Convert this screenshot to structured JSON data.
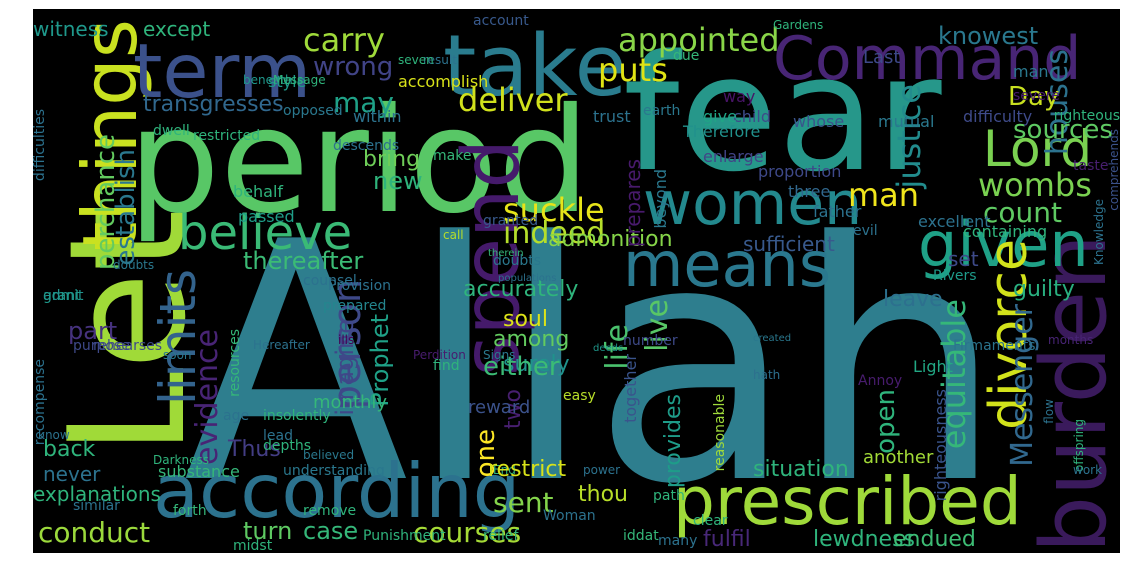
{
  "words": [
    {
      "text": "Allah",
      "color": "#2e7e8e",
      "rotated": false
    },
    {
      "text": "fear",
      "color": "#26978a",
      "rotated": false
    },
    {
      "text": "period",
      "color": "#58c766",
      "rotated": false
    },
    {
      "text": "Let",
      "color": "#a0da38",
      "rotated": true
    },
    {
      "text": "things",
      "color": "#c9e120",
      "rotated": true
    },
    {
      "text": "take",
      "color": "#2a7c8e",
      "rotated": false
    },
    {
      "text": "term",
      "color": "#3b518b",
      "rotated": false
    },
    {
      "text": "Command",
      "color": "#482575",
      "rotated": false
    },
    {
      "text": "according",
      "color": "#2c728e",
      "rotated": false
    },
    {
      "text": "prescribed",
      "color": "#9fda3a",
      "rotated": false
    },
    {
      "text": "spend",
      "color": "#451a6b",
      "rotated": true
    },
    {
      "text": "burden",
      "color": "#3a1a5c",
      "rotated": true
    },
    {
      "text": "believe",
      "color": "#3aba76",
      "rotated": false
    },
    {
      "text": "means",
      "color": "#2a788e",
      "rotated": false
    },
    {
      "text": "given",
      "color": "#1fa187",
      "rotated": false
    },
    {
      "text": "women",
      "color": "#23898e",
      "rotated": false
    },
    {
      "text": "limits",
      "color": "#33638d",
      "rotated": true
    },
    {
      "text": "divorce",
      "color": "#d2e21b",
      "rotated": true
    },
    {
      "text": "Lord",
      "color": "#7ad151",
      "rotated": false
    },
    {
      "text": "appointed",
      "color": "#89d548",
      "rotated": false
    },
    {
      "text": "carry",
      "color": "#9fda3a",
      "rotated": false
    },
    {
      "text": "puts",
      "color": "#e0e314",
      "rotated": false
    },
    {
      "text": "deliver",
      "color": "#d0e11c",
      "rotated": false
    },
    {
      "text": "suckle",
      "color": "#e7e419",
      "rotated": false
    },
    {
      "text": "wombs",
      "color": "#7ad151",
      "rotated": false
    },
    {
      "text": "man",
      "color": "#f0e51c",
      "rotated": false
    },
    {
      "text": "Messenger",
      "color": "#31688e",
      "rotated": true
    },
    {
      "text": "equitable",
      "color": "#35b779",
      "rotated": true
    },
    {
      "text": "justice",
      "color": "#228c8d",
      "rotated": true
    },
    {
      "text": "count",
      "color": "#5ec962",
      "rotated": false
    },
    {
      "text": "houses",
      "color": "#2c728e",
      "rotated": true
    },
    {
      "text": "sources",
      "color": "#5ec962",
      "rotated": false
    },
    {
      "text": "knowest",
      "color": "#2a788e",
      "rotated": false
    },
    {
      "text": "Last",
      "color": "#3e4989",
      "rotated": false
    },
    {
      "text": "Day",
      "color": "#c8e020",
      "rotated": false
    },
    {
      "text": "witness",
      "color": "#1f988b",
      "rotated": false
    },
    {
      "text": "except",
      "color": "#2fb47c",
      "rotated": false
    },
    {
      "text": "wrong",
      "color": "#414487",
      "rotated": false
    },
    {
      "text": "may",
      "color": "#1fa187",
      "rotated": false
    },
    {
      "text": "transgresses",
      "color": "#31688e",
      "rotated": false
    },
    {
      "text": "establish",
      "color": "#2a788e",
      "rotated": true
    },
    {
      "text": "perchance",
      "color": "#63cb5f",
      "rotated": true
    },
    {
      "text": "new",
      "color": "#2fb47c",
      "rotated": false
    },
    {
      "text": "bring",
      "color": "#6ece58",
      "rotated": false
    },
    {
      "text": "indeed",
      "color": "#b5de2b",
      "rotated": false
    },
    {
      "text": "admonition",
      "color": "#86d549",
      "rotated": false
    },
    {
      "text": "sufficient",
      "color": "#38598c",
      "rotated": false
    },
    {
      "text": "set",
      "color": "#3e4a89",
      "rotated": false
    },
    {
      "text": "thereafter",
      "color": "#3bbb75",
      "rotated": false
    },
    {
      "text": "guilty",
      "color": "#29af7f",
      "rotated": false
    },
    {
      "text": "person",
      "color": "#3e4989",
      "rotated": true
    },
    {
      "text": "accurately",
      "color": "#2fb47c",
      "rotated": false
    },
    {
      "text": "soul",
      "color": "#dde318",
      "rotated": false
    },
    {
      "text": "among",
      "color": "#63cb5f",
      "rotated": false
    },
    {
      "text": "leave",
      "color": "#2d708e",
      "rotated": false
    },
    {
      "text": "evidence",
      "color": "#482475",
      "rotated": true
    },
    {
      "text": "part",
      "color": "#46327e",
      "rotated": false
    },
    {
      "text": "Prophet",
      "color": "#1fa187",
      "rotated": true
    },
    {
      "text": "imagine",
      "color": "#3f4788",
      "rotated": true
    },
    {
      "text": "surely",
      "color": "#20928c",
      "rotated": false
    },
    {
      "text": "two",
      "color": "#481f70",
      "rotated": true
    },
    {
      "text": "live",
      "color": "#58c766",
      "rotated": true
    },
    {
      "text": "life",
      "color": "#4ac16d",
      "rotated": true
    },
    {
      "text": "either",
      "color": "#3bbb75",
      "rotated": false
    },
    {
      "text": "open",
      "color": "#2fb47c",
      "rotated": true
    },
    {
      "text": "one",
      "color": "#fde725",
      "rotated": true
    },
    {
      "text": "provides",
      "color": "#1e9c89",
      "rotated": true
    },
    {
      "text": "back",
      "color": "#2fb47c",
      "rotated": false
    },
    {
      "text": "Thus",
      "color": "#433d84",
      "rotated": false
    },
    {
      "text": "never",
      "color": "#2c728e",
      "rotated": false
    },
    {
      "text": "monthly",
      "color": "#35b779",
      "rotated": false
    },
    {
      "text": "reward",
      "color": "#3b528b",
      "rotated": false
    },
    {
      "text": "situation",
      "color": "#2fb47c",
      "rotated": false
    },
    {
      "text": "thou",
      "color": "#b8de29",
      "rotated": false
    },
    {
      "text": "conduct",
      "color": "#9bd93c",
      "rotated": false
    },
    {
      "text": "turn",
      "color": "#5ec962",
      "rotated": false
    },
    {
      "text": "case",
      "color": "#35b779",
      "rotated": false
    },
    {
      "text": "courses",
      "color": "#a5db36",
      "rotated": false
    },
    {
      "text": "sent",
      "color": "#84d44b",
      "rotated": false
    },
    {
      "text": "fulfil",
      "color": "#482878",
      "rotated": false
    },
    {
      "text": "lewdness",
      "color": "#2fb47c",
      "rotated": false
    },
    {
      "text": "endued",
      "color": "#3dbc74",
      "rotated": false
    },
    {
      "text": "another",
      "color": "#a2da37",
      "rotated": false
    },
    {
      "text": "way",
      "color": "#481467",
      "rotated": false
    },
    {
      "text": "child",
      "color": "#3e4c8a",
      "rotated": false
    },
    {
      "text": "whose",
      "color": "#3a548c",
      "rotated": false
    },
    {
      "text": "mutual",
      "color": "#2a788e",
      "rotated": false
    },
    {
      "text": "difficulty",
      "color": "#3e4a89",
      "rotated": false
    },
    {
      "text": "trust",
      "color": "#2c728e",
      "rotated": false
    },
    {
      "text": "style",
      "color": "#1f998a",
      "rotated": false
    },
    {
      "text": "accomplish",
      "color": "#d8e219",
      "rotated": false
    },
    {
      "text": "within",
      "color": "#2c738e",
      "rotated": false
    },
    {
      "text": "prepares",
      "color": "#481a6c",
      "rotated": true
    },
    {
      "text": "beyond",
      "color": "#2a788e",
      "rotated": true
    },
    {
      "text": "give",
      "color": "#20a486",
      "rotated": false
    },
    {
      "text": "enlarge",
      "color": "#414487",
      "rotated": false
    },
    {
      "text": "three",
      "color": "#31688e",
      "rotated": false
    },
    {
      "text": "proportion",
      "color": "#3e4989",
      "rotated": false
    },
    {
      "text": "father",
      "color": "#2c728e",
      "rotated": false
    },
    {
      "text": "behalf",
      "color": "#2fb47c",
      "rotated": false
    },
    {
      "text": "passed",
      "color": "#1f9e89",
      "rotated": false
    },
    {
      "text": "granted",
      "color": "#38598c",
      "rotated": false
    },
    {
      "text": "call",
      "color": "#b5de2b",
      "rotated": false
    },
    {
      "text": "doubts",
      "color": "#2a788e",
      "rotated": false
    },
    {
      "text": "counsel",
      "color": "#2c728e",
      "rotated": false
    },
    {
      "text": "prepared",
      "color": "#24868e",
      "rotated": false
    },
    {
      "text": "ills",
      "color": "#440154",
      "rotated": false
    },
    {
      "text": "Rivers",
      "color": "#1e9b8a",
      "rotated": false
    },
    {
      "text": "months",
      "color": "#482475",
      "rotated": false
    },
    {
      "text": "Firmaments",
      "color": "#2b748e",
      "rotated": false
    },
    {
      "text": "admit",
      "color": "#20928c",
      "rotated": false
    },
    {
      "text": "therein",
      "color": "#35b779",
      "rotated": false
    },
    {
      "text": "populations",
      "color": "#2c728e",
      "rotated": false
    },
    {
      "text": "number",
      "color": "#3e4a89",
      "rotated": false
    },
    {
      "text": "created",
      "color": "#2a788e",
      "rotated": false
    },
    {
      "text": "deeds",
      "color": "#1f988b",
      "rotated": false
    },
    {
      "text": "easy",
      "color": "#b8de29",
      "rotated": false
    },
    {
      "text": "together",
      "color": "#3a548c",
      "rotated": true
    },
    {
      "text": "hath",
      "color": "#2d708e",
      "rotated": false
    },
    {
      "text": "Annoy",
      "color": "#481c6e",
      "rotated": false
    },
    {
      "text": "Light",
      "color": "#22a884",
      "rotated": false
    },
    {
      "text": "reasonable",
      "color": "#9fda3a",
      "rotated": true
    },
    {
      "text": "righteousness",
      "color": "#3a548c",
      "rotated": true
    },
    {
      "text": "find",
      "color": "#2fb47c",
      "rotated": false
    },
    {
      "text": "grant",
      "color": "#1f988b",
      "rotated": false
    },
    {
      "text": "doubts",
      "color": "#2a788e",
      "rotated": false
    },
    {
      "text": "Provision",
      "color": "#2c728e",
      "rotated": false
    },
    {
      "text": "rehearses",
      "color": "#3e4989",
      "rotated": false
    },
    {
      "text": "Hereafter",
      "color": "#2c728e",
      "rotated": false
    },
    {
      "text": "Perdition",
      "color": "#481c6e",
      "rotated": false
    },
    {
      "text": "Signs",
      "color": "#2a788e",
      "rotated": false
    },
    {
      "text": "Therefore",
      "color": "#21918c",
      "rotated": false
    },
    {
      "text": "righteous",
      "color": "#2fb47c",
      "rotated": false
    },
    {
      "text": "comprehends",
      "color": "#3b528b",
      "rotated": true
    },
    {
      "text": "Knowledge",
      "color": "#2c728e",
      "rotated": true
    },
    {
      "text": "taste",
      "color": "#481f70",
      "rotated": false
    },
    {
      "text": "excellent",
      "color": "#2c728e",
      "rotated": false
    },
    {
      "text": "containing",
      "color": "#2fb47c",
      "rotated": false
    },
    {
      "text": "evil",
      "color": "#2c728e",
      "rotated": false
    },
    {
      "text": "man",
      "color": "#2a788e",
      "rotated": false
    },
    {
      "text": "severe",
      "color": "#481c6e",
      "rotated": false
    },
    {
      "text": "due",
      "color": "#35b779",
      "rotated": false
    },
    {
      "text": "earth",
      "color": "#2a788e",
      "rotated": false
    },
    {
      "text": "Gardens",
      "color": "#2fb47c",
      "rotated": false
    },
    {
      "text": "account",
      "color": "#38598c",
      "rotated": false
    },
    {
      "text": "result",
      "color": "#2c728e",
      "rotated": false
    },
    {
      "text": "seven",
      "color": "#2fb47c",
      "rotated": false
    },
    {
      "text": "beneath",
      "color": "#1f988b",
      "rotated": false
    },
    {
      "text": "Message",
      "color": "#2fb47c",
      "rotated": false
    },
    {
      "text": "opposed",
      "color": "#2a788e",
      "rotated": false
    },
    {
      "text": "dwell",
      "color": "#2fb47c",
      "rotated": false
    },
    {
      "text": "difficulties",
      "color": "#2c728e",
      "rotated": true
    },
    {
      "text": "descends",
      "color": "#2c728e",
      "rotated": false
    },
    {
      "text": "make",
      "color": "#35b779",
      "rotated": false
    },
    {
      "text": "restricted",
      "color": "#2fb47c",
      "rotated": false
    },
    {
      "text": "soon",
      "color": "#2a788e",
      "rotated": false
    },
    {
      "text": "purpose",
      "color": "#3e4989",
      "rotated": false
    },
    {
      "text": "resources",
      "color": "#35b779",
      "rotated": true
    },
    {
      "text": "recompense",
      "color": "#2c728e",
      "rotated": true
    },
    {
      "text": "age",
      "color": "#2c728e",
      "rotated": false
    },
    {
      "text": "insolently",
      "color": "#2fb47c",
      "rotated": false
    },
    {
      "text": "lead",
      "color": "#2c728e",
      "rotated": false
    },
    {
      "text": "depths",
      "color": "#2fb47c",
      "rotated": false
    },
    {
      "text": "believed",
      "color": "#2a788e",
      "rotated": false
    },
    {
      "text": "know",
      "color": "#2c728e",
      "rotated": false
    },
    {
      "text": "Darkness",
      "color": "#2fb47c",
      "rotated": false
    },
    {
      "text": "substance",
      "color": "#35b779",
      "rotated": false
    },
    {
      "text": "understanding",
      "color": "#2a788e",
      "rotated": false
    },
    {
      "text": "End",
      "color": "#2fb47c",
      "rotated": false
    },
    {
      "text": "power",
      "color": "#2c728e",
      "rotated": false
    },
    {
      "text": "restrict",
      "color": "#d8e219",
      "rotated": false
    },
    {
      "text": "path",
      "color": "#2fb47c",
      "rotated": false
    },
    {
      "text": "flow",
      "color": "#2c728e",
      "rotated": true
    },
    {
      "text": "offspring",
      "color": "#2fb47c",
      "rotated": true
    },
    {
      "text": "work",
      "color": "#2c728e",
      "rotated": false
    },
    {
      "text": "explanations",
      "color": "#2fb47c",
      "rotated": false
    },
    {
      "text": "similar",
      "color": "#2c728e",
      "rotated": false
    },
    {
      "text": "forth",
      "color": "#35b779",
      "rotated": false
    },
    {
      "text": "remove",
      "color": "#2fb47c",
      "rotated": false
    },
    {
      "text": "Punishment",
      "color": "#2fb47c",
      "rotated": false
    },
    {
      "text": "relief",
      "color": "#35b779",
      "rotated": false
    },
    {
      "text": "Woman",
      "color": "#2c728e",
      "rotated": false
    },
    {
      "text": "iddat",
      "color": "#35b779",
      "rotated": false
    },
    {
      "text": "clear",
      "color": "#2fb47c",
      "rotated": false
    },
    {
      "text": "many",
      "color": "#2c728e",
      "rotated": false
    },
    {
      "text": "midst",
      "color": "#2fb47c",
      "rotated": false
    }
  ]
}
